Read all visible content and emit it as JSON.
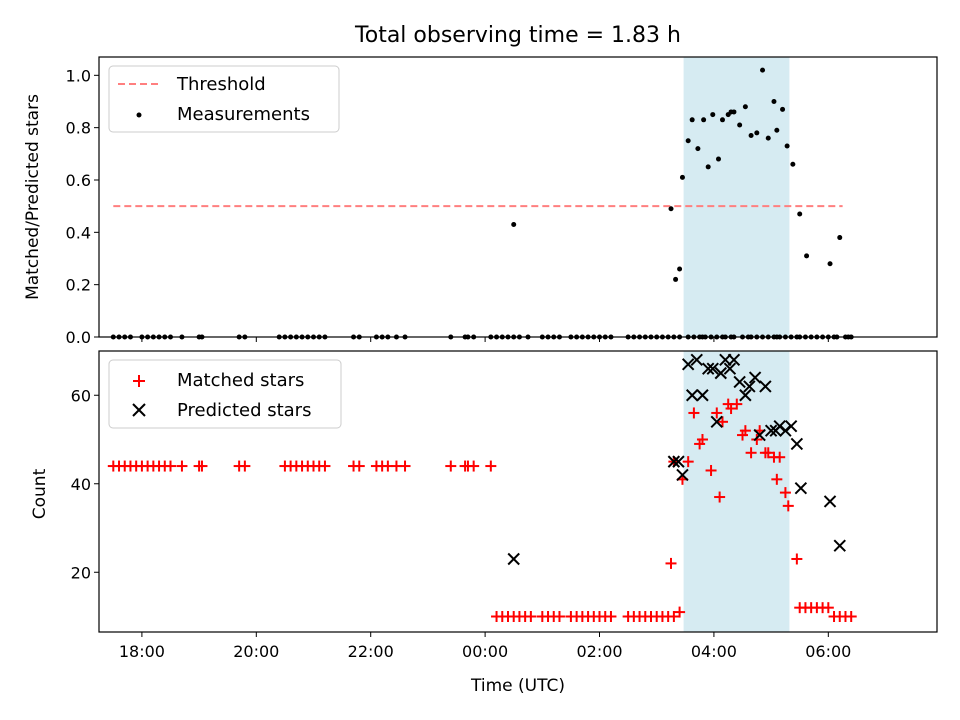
{
  "title": "Total observing time = 1.83 h",
  "colors": {
    "threshold": "#ff7f7f",
    "measurement": "#000000",
    "matched": "#ff0000",
    "predicted": "#000000",
    "observing_span": "#add8e6"
  },
  "chart_data": [
    {
      "type": "scatter",
      "ylabel": "Matched/Predicted stars",
      "xlabel": "",
      "xlim": [
        -6.75,
        7.9
      ],
      "ylim": [
        0,
        1.07
      ],
      "yticks": [
        0.0,
        0.2,
        0.4,
        0.6,
        0.8,
        1.0
      ],
      "ytick_labels": [
        "0.0",
        "0.2",
        "0.4",
        "0.6",
        "0.8",
        "1.0"
      ],
      "xticks": [
        -6,
        -4,
        -2,
        0,
        2,
        4,
        6
      ],
      "observing_span": [
        3.47,
        5.32
      ],
      "legend": "top-left",
      "threshold": {
        "name": "Threshold",
        "y": 0.5,
        "x": [
          -6.5,
          6.25
        ]
      },
      "series": [
        {
          "name": "Measurements",
          "x": [
            -6.5,
            -6.4,
            -6.3,
            -6.2,
            -6.0,
            -5.9,
            -5.8,
            -5.7,
            -5.6,
            -5.5,
            -5.3,
            -5.0,
            -4.95,
            -4.3,
            -4.2,
            -3.6,
            -3.5,
            -3.4,
            -3.3,
            -3.2,
            -3.1,
            -3.0,
            -2.9,
            -2.8,
            -2.3,
            -2.2,
            -1.9,
            -1.8,
            -1.7,
            -1.55,
            -1.4,
            -0.6,
            -0.35,
            -0.3,
            -0.2,
            0.1,
            0.2,
            0.3,
            0.4,
            0.5,
            0.6,
            0.75,
            1.0,
            1.1,
            1.2,
            1.3,
            1.5,
            1.6,
            1.7,
            1.8,
            1.9,
            2.0,
            2.1,
            2.2,
            2.5,
            2.6,
            2.7,
            2.8,
            2.9,
            3.0,
            3.1,
            3.2,
            3.3,
            3.4,
            3.55,
            3.65,
            3.75,
            3.8,
            3.85,
            3.95,
            4.05,
            4.15,
            4.2,
            4.3,
            4.35,
            4.5,
            4.6,
            4.65,
            4.75,
            4.85,
            4.95,
            5.05,
            5.1,
            5.15,
            5.25,
            5.35,
            5.45,
            5.5,
            5.6,
            5.7,
            5.8,
            5.9,
            6.0,
            6.1,
            6.15,
            6.3,
            6.35,
            6.4
          ],
          "y": [
            0,
            0,
            0,
            0,
            0,
            0,
            0,
            0,
            0,
            0,
            0,
            0,
            0,
            0,
            0,
            0,
            0,
            0,
            0,
            0,
            0,
            0,
            0,
            0,
            0,
            0,
            0,
            0,
            0,
            0,
            0,
            0,
            0,
            0,
            0,
            0,
            0,
            0,
            0,
            0,
            0,
            0,
            0,
            0,
            0,
            0,
            0,
            0,
            0,
            0,
            0,
            0,
            0,
            0,
            0,
            0,
            0,
            0,
            0,
            0,
            0,
            0,
            0,
            0,
            0,
            0,
            0,
            0,
            0,
            0,
            0,
            0,
            0,
            0,
            0,
            0,
            0,
            0,
            0,
            0,
            0,
            0,
            0,
            0,
            0,
            0,
            0,
            0,
            0,
            0,
            0,
            0,
            0,
            0,
            0,
            0,
            0,
            0
          ],
          "extra_points": {
            "x": [
              0.5,
              3.25,
              3.33,
              3.4,
              3.45,
              3.55,
              3.62,
              3.72,
              3.82,
              3.9,
              3.98,
              4.08,
              4.15,
              4.25,
              4.3,
              4.35,
              4.45,
              4.55,
              4.65,
              4.75,
              4.85,
              4.95,
              5.05,
              5.1,
              5.2,
              5.28,
              5.38,
              5.5,
              5.62,
              6.03,
              6.2
            ],
            "y": [
              0.43,
              0.49,
              0.22,
              0.26,
              0.61,
              0.75,
              0.83,
              0.72,
              0.83,
              0.65,
              0.85,
              0.68,
              0.83,
              0.85,
              0.86,
              0.86,
              0.81,
              0.88,
              0.77,
              0.78,
              1.02,
              0.76,
              0.9,
              0.79,
              0.87,
              0.73,
              0.66,
              0.47,
              0.31,
              0.28,
              0.38
            ]
          }
        }
      ]
    },
    {
      "type": "scatter",
      "ylabel": "Count",
      "xlabel": "Time (UTC)",
      "xlim": [
        -6.75,
        7.9
      ],
      "ylim": [
        6.5,
        70
      ],
      "yticks": [
        20,
        40,
        60
      ],
      "ytick_labels": [
        "20",
        "40",
        "60"
      ],
      "xticks": [
        -6,
        -4,
        -2,
        0,
        2,
        4,
        6
      ],
      "xtick_labels": [
        "18:00",
        "20:00",
        "22:00",
        "00:00",
        "02:00",
        "04:00",
        "06:00"
      ],
      "observing_span": [
        3.47,
        5.32
      ],
      "legend": "top-left",
      "series": [
        {
          "name": "Matched stars",
          "x": [
            -6.5,
            -6.4,
            -6.3,
            -6.2,
            -6.1,
            -6.0,
            -5.9,
            -5.8,
            -5.7,
            -5.6,
            -5.5,
            -5.3,
            -5.0,
            -4.95,
            -4.3,
            -4.2,
            -3.5,
            -3.4,
            -3.3,
            -3.2,
            -3.1,
            -3.0,
            -2.9,
            -2.8,
            -2.3,
            -2.2,
            -1.9,
            -1.8,
            -1.7,
            -1.55,
            -1.4,
            -0.6,
            -0.35,
            -0.3,
            -0.2,
            0.1,
            0.2,
            0.3,
            0.4,
            0.5,
            0.6,
            0.7,
            0.8,
            1.0,
            1.1,
            1.2,
            1.3,
            1.5,
            1.6,
            1.7,
            1.8,
            1.9,
            2.0,
            2.1,
            2.2,
            2.5,
            2.6,
            2.7,
            2.8,
            2.9,
            3.0,
            3.1,
            3.2,
            3.3,
            3.4,
            3.25,
            3.3,
            3.45,
            3.55,
            3.65,
            3.75,
            3.8,
            3.95,
            4.05,
            4.1,
            4.15,
            4.25,
            4.3,
            4.4,
            4.5,
            4.55,
            4.65,
            4.75,
            4.8,
            4.9,
            4.95,
            5.05,
            5.1,
            5.15,
            5.25,
            5.3,
            5.45,
            5.5,
            5.6,
            5.7,
            5.8,
            5.9,
            6.0,
            6.1,
            6.2,
            6.3,
            6.4
          ],
          "y": [
            44,
            44,
            44,
            44,
            44,
            44,
            44,
            44,
            44,
            44,
            44,
            44,
            44,
            44,
            44,
            44,
            44,
            44,
            44,
            44,
            44,
            44,
            44,
            44,
            44,
            44,
            44,
            44,
            44,
            44,
            44,
            44,
            44,
            44,
            44,
            44,
            10,
            10,
            10,
            10,
            10,
            10,
            10,
            10,
            10,
            10,
            10,
            10,
            10,
            10,
            10,
            10,
            10,
            10,
            10,
            10,
            10,
            10,
            10,
            10,
            10,
            10,
            10,
            10,
            11,
            22,
            45,
            41,
            45,
            56,
            49,
            50,
            43,
            56,
            37,
            54,
            58,
            57,
            58,
            51,
            52,
            47,
            50,
            52,
            47,
            47,
            46,
            41,
            46,
            38,
            35,
            23,
            12,
            12,
            12,
            12,
            12,
            12,
            10,
            10,
            10,
            10
          ]
        },
        {
          "name": "Predicted stars",
          "x": [
            0.5,
            3.3,
            3.38,
            3.45,
            3.55,
            3.62,
            3.7,
            3.8,
            3.9,
            3.98,
            4.05,
            4.12,
            4.2,
            4.28,
            4.35,
            4.45,
            4.55,
            4.62,
            4.72,
            4.8,
            4.9,
            5.0,
            5.08,
            5.15,
            5.25,
            5.35,
            5.45,
            5.52,
            6.03,
            6.2
          ],
          "y": [
            23,
            45,
            45,
            42,
            67,
            60,
            68,
            60,
            66,
            66,
            54,
            65,
            68,
            66,
            68,
            63,
            60,
            62,
            64,
            51,
            62,
            52,
            52,
            53,
            52,
            53,
            49,
            39,
            36,
            26
          ]
        }
      ]
    }
  ]
}
